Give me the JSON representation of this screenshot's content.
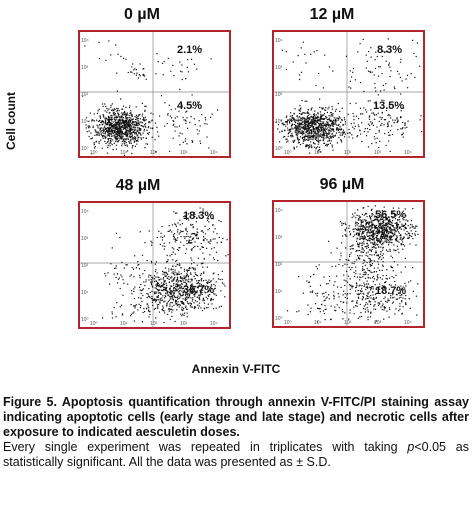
{
  "panels": [
    {
      "title": "0 µM",
      "upper_right": "2.1%",
      "lower_right": "4.5%"
    },
    {
      "title": "12 µM",
      "upper_right": "8.3%",
      "lower_right": "13.5%"
    },
    {
      "title": "48 µM",
      "upper_right": "18.3%",
      "lower_right": "36.7%"
    },
    {
      "title": "96 µM",
      "upper_right": "56.5%",
      "lower_right": "18.7%"
    }
  ],
  "axis": {
    "ylabel": "Cell count",
    "xlabel": "Annexin V-FITC",
    "y_ticks": [
      "10⁴",
      "10³",
      "10²",
      "10¹",
      "10⁰"
    ],
    "x_ticks": [
      "10⁰",
      "10¹",
      "10²",
      "10³",
      "10⁴"
    ]
  },
  "caption": {
    "title": "Figure 5. Apoptosis quantification through annexin V-FITC/PI staining assay indicating apoptotic cells (early stage and late stage) and necrotic cells after exposure to indicated aesculetin doses.",
    "body_part1": "Every single experiment was repeated in triplicates with taking ",
    "p_symbol": "p",
    "body_part2": "<0.05 as statistically significant. All the data was presented as ± S.D."
  },
  "colors": {
    "frame": "#b3242b",
    "dots": "#111111"
  }
}
